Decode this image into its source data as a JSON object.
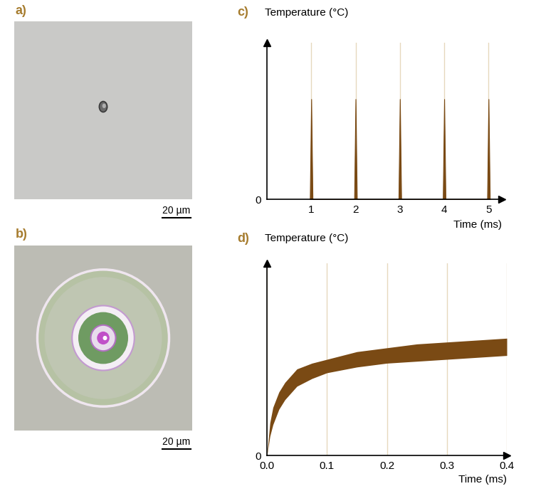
{
  "images": [
    {
      "label": "a)",
      "scale_bar": "20 µm"
    },
    {
      "label": "b)",
      "scale_bar": "20 µm"
    }
  ],
  "chart_data": [
    {
      "type": "area",
      "label": "c)",
      "y_label": "Temperature (°C)",
      "x_label": "Time (ms)",
      "x": [
        0.97,
        1,
        1.03,
        1.97,
        2,
        2.03,
        2.97,
        3,
        3.03,
        3.97,
        4,
        4.03,
        4.97,
        5,
        5.03
      ],
      "values": [
        0,
        0.64,
        0,
        0,
        0.64,
        0,
        0,
        0.64,
        0,
        0,
        0.64,
        0,
        0,
        0.64,
        0
      ],
      "color": "#7a4a14",
      "xlim": [
        0,
        5.3
      ],
      "xticks": [
        1,
        2,
        3,
        4,
        5
      ],
      "ylim": [
        0,
        1
      ],
      "yticks": [
        0
      ],
      "grid": true
    },
    {
      "type": "range_area",
      "label": "d)",
      "y_label": "Temperature (°C)",
      "x_label": "Time (ms)",
      "x": [
        0,
        0.005,
        0.01,
        0.02,
        0.03,
        0.05,
        0.075,
        0.1,
        0.15,
        0.2,
        0.25,
        0.3,
        0.35,
        0.4
      ],
      "values_low": [
        0,
        0.1,
        0.16,
        0.24,
        0.29,
        0.36,
        0.4,
        0.43,
        0.46,
        0.48,
        0.49,
        0.5,
        0.51,
        0.52
      ],
      "values_high": [
        0,
        0.17,
        0.25,
        0.33,
        0.38,
        0.45,
        0.48,
        0.5,
        0.54,
        0.56,
        0.58,
        0.59,
        0.6,
        0.61
      ],
      "color": "#7a4a14",
      "xlim": [
        0,
        0.4
      ],
      "xticks": [
        {
          "value": 0,
          "label": "0.0"
        },
        {
          "value": 0.1,
          "label": "0.1"
        },
        {
          "value": 0.2,
          "label": "0.2"
        },
        {
          "value": 0.3,
          "label": "0.3"
        },
        {
          "value": 0.4,
          "label": "0.4"
        }
      ],
      "ylim": [
        0,
        1
      ],
      "yticks": [
        0
      ],
      "grid": true
    }
  ]
}
